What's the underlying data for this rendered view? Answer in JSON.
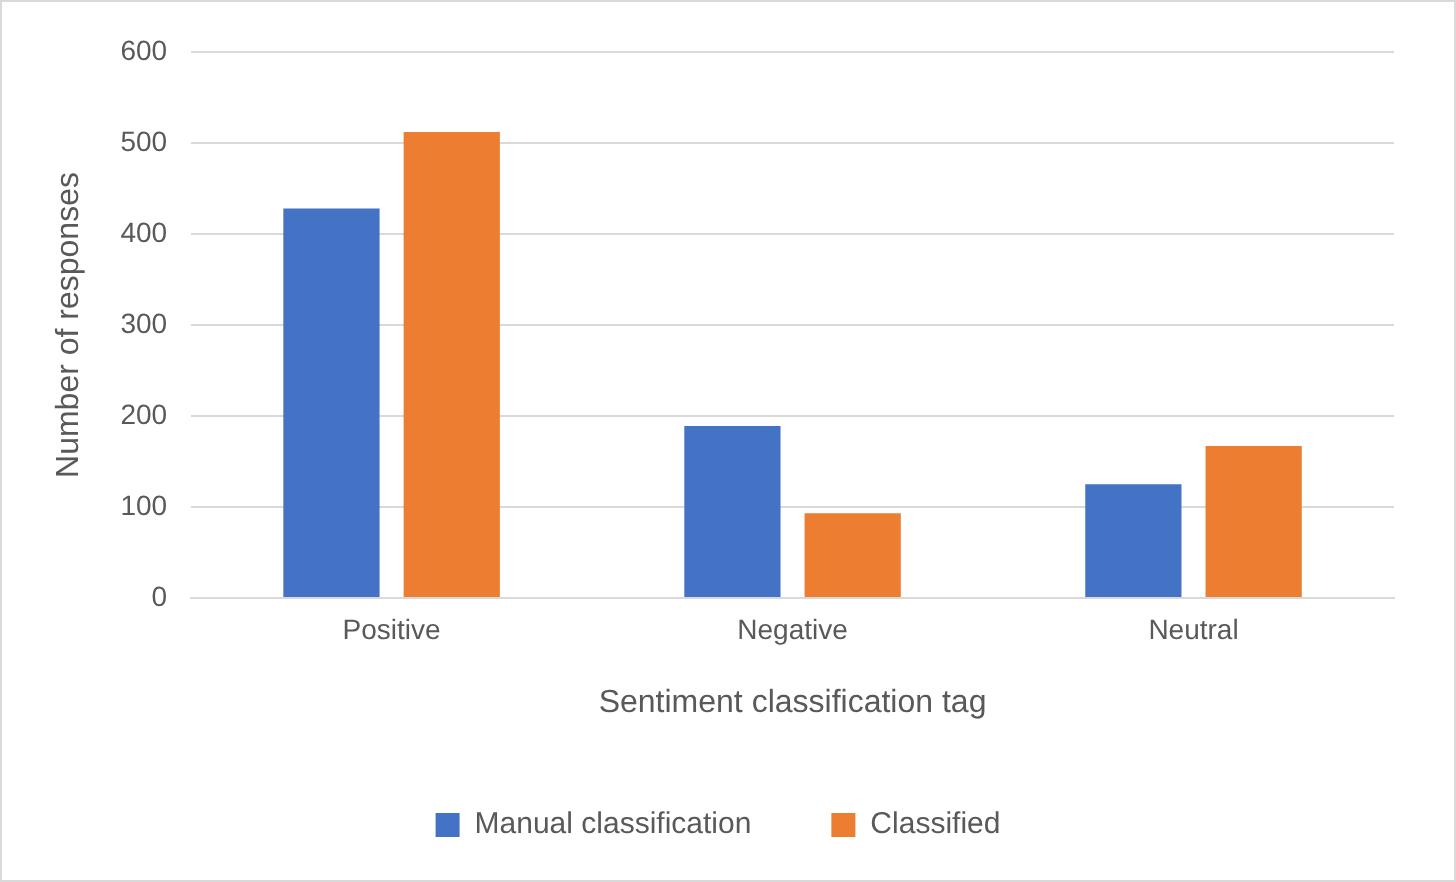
{
  "chart_data": {
    "type": "bar",
    "xlabel": "Sentiment classification tag",
    "ylabel": "Number of responses",
    "categories": [
      "Positive",
      "Negative",
      "Neutral"
    ],
    "series": [
      {
        "name": "Manual classification",
        "color": "#4472c4",
        "values": [
          428,
          189,
          125
        ]
      },
      {
        "name": "Classified",
        "color": "#ed7d31",
        "values": [
          512,
          93,
          167
        ]
      }
    ],
    "ylim": [
      0,
      600
    ],
    "yticks": [
      0,
      100,
      200,
      300,
      400,
      500,
      600
    ],
    "grid": "y",
    "legend": "bottom"
  }
}
